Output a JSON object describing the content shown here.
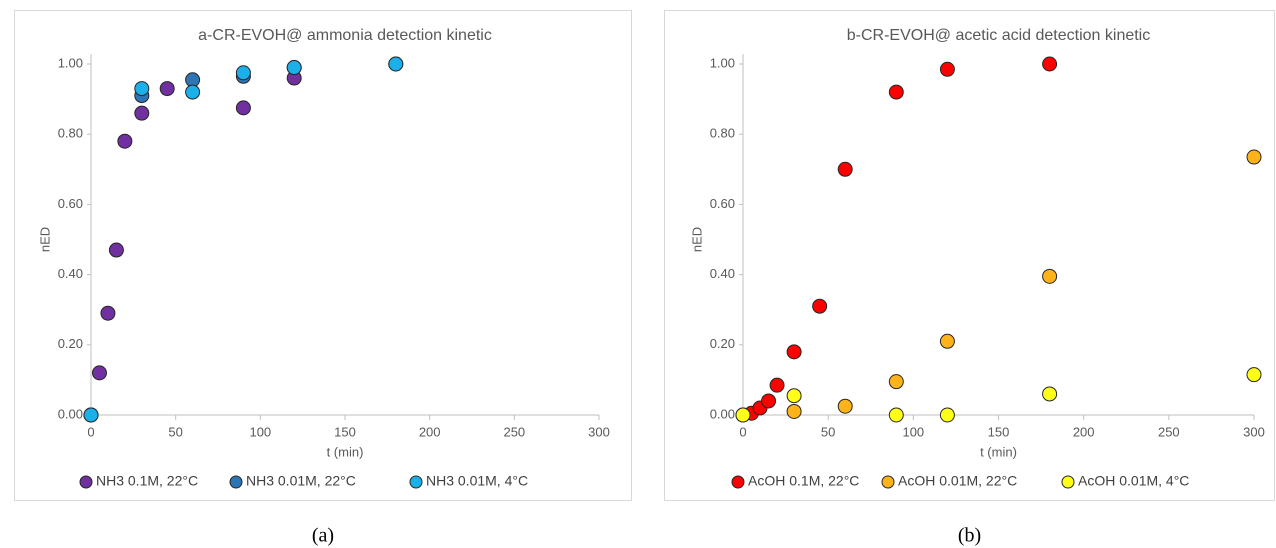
{
  "chart_data": [
    {
      "type": "scatter",
      "title": "a-CR-EVOH@ ammonia detection kinetic",
      "xlabel": "t (min)",
      "ylabel": "nED",
      "caption": "(a)",
      "xlim": [
        0,
        300
      ],
      "xticks": [
        0,
        50,
        100,
        150,
        200,
        250,
        300
      ],
      "ylim": [
        0,
        1.0
      ],
      "yticks": [
        {
          "value": 0,
          "label": "0.00"
        },
        {
          "value": 0.2,
          "label": "0.20"
        },
        {
          "value": 0.4,
          "label": "0.40"
        },
        {
          "value": 0.6,
          "label": "0.60"
        },
        {
          "value": 0.8,
          "label": "0.80"
        },
        {
          "value": 1.0,
          "label": "1.00"
        }
      ],
      "legend": "bottom",
      "series": [
        {
          "name": "NH3 0.1M, 22°C",
          "color": "#7030a0",
          "x": [
            0,
            5,
            10,
            15,
            20,
            30,
            45,
            90,
            120
          ],
          "values": [
            0,
            0.12,
            0.29,
            0.47,
            0.78,
            0.86,
            0.93,
            0.875,
            0.96
          ]
        },
        {
          "name": "NH3 0.01M, 22°C",
          "color": "#2e75b6",
          "x": [
            0,
            30,
            60,
            90,
            120,
            180
          ],
          "values": [
            0,
            0.91,
            0.955,
            0.965,
            0.99,
            1.0
          ]
        },
        {
          "name": "NH3 0.01M, 4°C",
          "color": "#1cb0ea",
          "x": [
            0,
            30,
            60,
            90,
            120,
            180
          ],
          "values": [
            0,
            0.93,
            0.92,
            0.975,
            0.99,
            1.0
          ]
        }
      ]
    },
    {
      "type": "scatter",
      "title": "b-CR-EVOH@ acetic acid detection kinetic",
      "xlabel": "t (min)",
      "ylabel": "nED",
      "caption": "(b)",
      "xlim": [
        0,
        300
      ],
      "xticks": [
        0,
        50,
        100,
        150,
        200,
        250,
        300
      ],
      "ylim": [
        0,
        1.0
      ],
      "yticks": [
        {
          "value": 0,
          "label": "0.00"
        },
        {
          "value": 0.2,
          "label": "0.20"
        },
        {
          "value": 0.4,
          "label": "0.40"
        },
        {
          "value": 0.6,
          "label": "0.60"
        },
        {
          "value": 0.8,
          "label": "0.80"
        },
        {
          "value": 1.0,
          "label": "1.00"
        }
      ],
      "legend": "bottom",
      "series": [
        {
          "name": "AcOH 0.1M, 22°C",
          "color": "#ff0000",
          "x": [
            0,
            5,
            10,
            15,
            20,
            30,
            45,
            60,
            90,
            120,
            180
          ],
          "values": [
            0,
            0.005,
            0.02,
            0.04,
            0.085,
            0.18,
            0.31,
            0.7,
            0.92,
            0.985,
            1.0
          ]
        },
        {
          "name": "AcOH 0.01M, 22°C",
          "color": "#ffb31a",
          "x": [
            0,
            30,
            60,
            90,
            120,
            180,
            300
          ],
          "values": [
            0,
            0.01,
            0.025,
            0.095,
            0.21,
            0.395,
            0.735
          ]
        },
        {
          "name": "AcOH 0.01M, 4°C",
          "color": "#ffff1a",
          "x": [
            0,
            30,
            90,
            120,
            180,
            300
          ],
          "values": [
            0,
            0.055,
            0,
            0,
            0.06,
            0.115
          ]
        }
      ]
    }
  ]
}
